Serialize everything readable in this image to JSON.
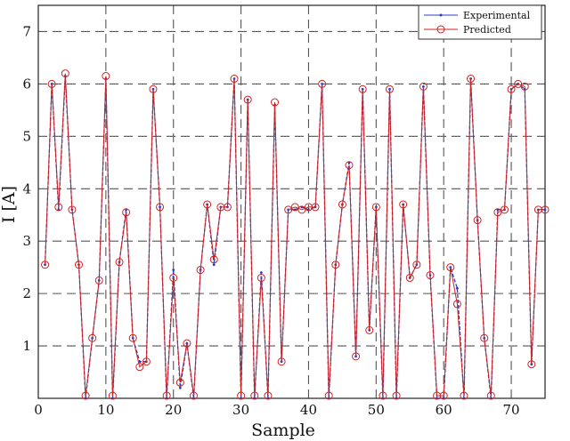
{
  "chart_data": {
    "type": "line",
    "title": "",
    "xlabel": "Sample",
    "ylabel": "I [A]",
    "xlim": [
      0,
      75
    ],
    "ylim": [
      0,
      7.5
    ],
    "xticks": [
      0,
      10,
      20,
      30,
      40,
      50,
      60,
      70
    ],
    "yticks": [
      1,
      2,
      3,
      4,
      5,
      6,
      7
    ],
    "grid": true,
    "legend_position": "top-right",
    "series": [
      {
        "name": "Experimental",
        "color": "#2b3ec2",
        "marker": "dot",
        "x": [
          1,
          2,
          3,
          4,
          5,
          6,
          7,
          8,
          9,
          10,
          11,
          12,
          13,
          14,
          15,
          16,
          17,
          18,
          19,
          20,
          21,
          22,
          23,
          24,
          25,
          26,
          27,
          28,
          29,
          30,
          31,
          32,
          33,
          34,
          35,
          36,
          37,
          38,
          39,
          40,
          41,
          42,
          43,
          44,
          45,
          46,
          47,
          48,
          49,
          50,
          51,
          52,
          53,
          54,
          55,
          56,
          57,
          58,
          59,
          60,
          61,
          62,
          63,
          64,
          65,
          66,
          67,
          68,
          69,
          70,
          71,
          72,
          73,
          74,
          75
        ],
        "values": [
          2.55,
          6.0,
          3.6,
          6.15,
          3.6,
          2.55,
          0.0,
          1.15,
          2.25,
          6.1,
          0.0,
          2.6,
          3.6,
          1.15,
          0.7,
          0.7,
          5.9,
          3.65,
          0.0,
          2.45,
          0.2,
          1.05,
          0.0,
          2.45,
          3.7,
          2.55,
          3.65,
          3.65,
          6.1,
          0.0,
          5.7,
          0.0,
          2.4,
          0.0,
          5.6,
          0.7,
          3.6,
          3.6,
          3.65,
          3.6,
          3.65,
          6.0,
          0.0,
          2.55,
          3.7,
          4.5,
          0.8,
          5.9,
          1.3,
          3.65,
          0.0,
          5.9,
          0.0,
          3.7,
          2.3,
          2.55,
          5.95,
          2.35,
          0.0,
          0.0,
          2.5,
          2.1,
          0.0,
          6.1,
          3.4,
          1.15,
          0.0,
          3.6,
          3.6,
          5.9,
          6.0,
          5.9,
          0.65,
          3.6,
          3.6
        ]
      },
      {
        "name": "Predicted",
        "color": "#cc2222",
        "marker": "circle",
        "x": [
          1,
          2,
          3,
          4,
          5,
          6,
          7,
          8,
          9,
          10,
          11,
          12,
          13,
          14,
          15,
          16,
          17,
          18,
          19,
          20,
          21,
          22,
          23,
          24,
          25,
          26,
          27,
          28,
          29,
          30,
          31,
          32,
          33,
          34,
          35,
          36,
          37,
          38,
          39,
          40,
          41,
          42,
          43,
          44,
          45,
          46,
          47,
          48,
          49,
          50,
          51,
          52,
          53,
          54,
          55,
          56,
          57,
          58,
          59,
          60,
          61,
          62,
          63,
          64,
          65,
          66,
          67,
          68,
          69,
          70,
          71,
          72,
          73,
          74,
          75
        ],
        "values": [
          2.55,
          6.0,
          3.65,
          6.2,
          3.6,
          2.55,
          0.05,
          1.15,
          2.25,
          6.15,
          0.05,
          2.6,
          3.55,
          1.15,
          0.6,
          0.7,
          5.9,
          3.65,
          0.05,
          2.3,
          0.3,
          1.05,
          0.05,
          2.45,
          3.7,
          2.65,
          3.65,
          3.65,
          6.1,
          0.05,
          5.7,
          0.05,
          2.3,
          0.05,
          5.65,
          0.7,
          3.6,
          3.65,
          3.6,
          3.65,
          3.65,
          6.0,
          0.05,
          2.55,
          3.7,
          4.45,
          0.8,
          5.9,
          1.3,
          3.65,
          0.05,
          5.9,
          0.05,
          3.7,
          2.3,
          2.55,
          5.95,
          2.35,
          0.05,
          0.05,
          2.5,
          1.8,
          0.05,
          6.1,
          3.4,
          1.15,
          0.05,
          3.55,
          3.6,
          5.9,
          6.0,
          5.95,
          0.65,
          3.6,
          3.6
        ]
      }
    ]
  }
}
